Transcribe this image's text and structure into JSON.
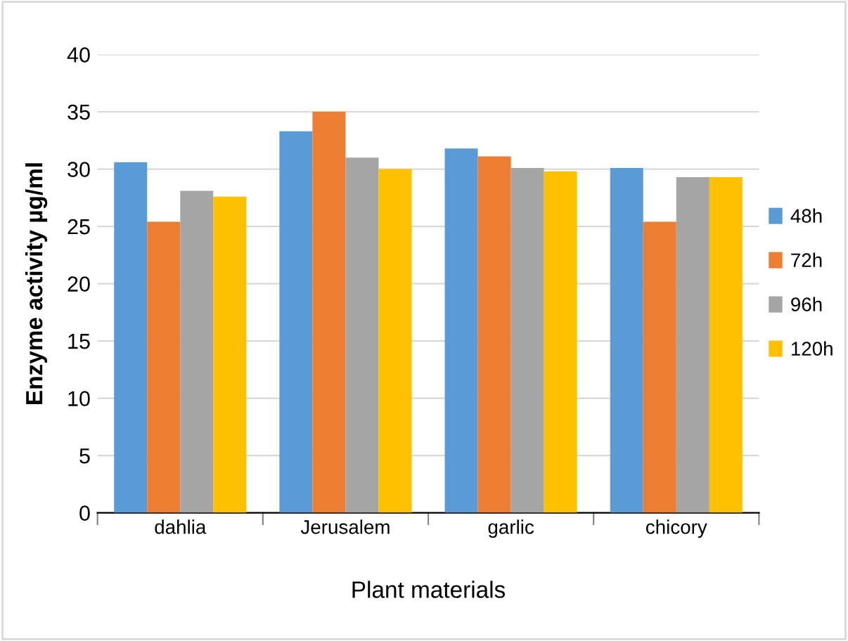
{
  "chart_data": {
    "type": "bar",
    "xlabel": "Plant materials",
    "ylabel": "Enzyme activity µg/ml",
    "categories": [
      "dahlia",
      "Jerusalem",
      "garlic",
      "chicory"
    ],
    "series": [
      {
        "name": "48h",
        "color": "#5b9bd5",
        "values": [
          30.6,
          33.3,
          31.8,
          30.1
        ]
      },
      {
        "name": "72h",
        "color": "#ed7d31",
        "values": [
          25.4,
          35.0,
          31.1,
          25.4
        ]
      },
      {
        "name": "96h",
        "color": "#a5a5a5",
        "values": [
          28.1,
          31.0,
          30.1,
          29.3
        ]
      },
      {
        "name": "120h",
        "color": "#ffc000",
        "values": [
          27.6,
          30.0,
          29.8,
          29.3
        ]
      }
    ],
    "ylim": [
      0,
      40
    ],
    "yticks": [
      0,
      5,
      10,
      15,
      20,
      25,
      30,
      35,
      40
    ],
    "grid": "y",
    "legend": "right"
  }
}
